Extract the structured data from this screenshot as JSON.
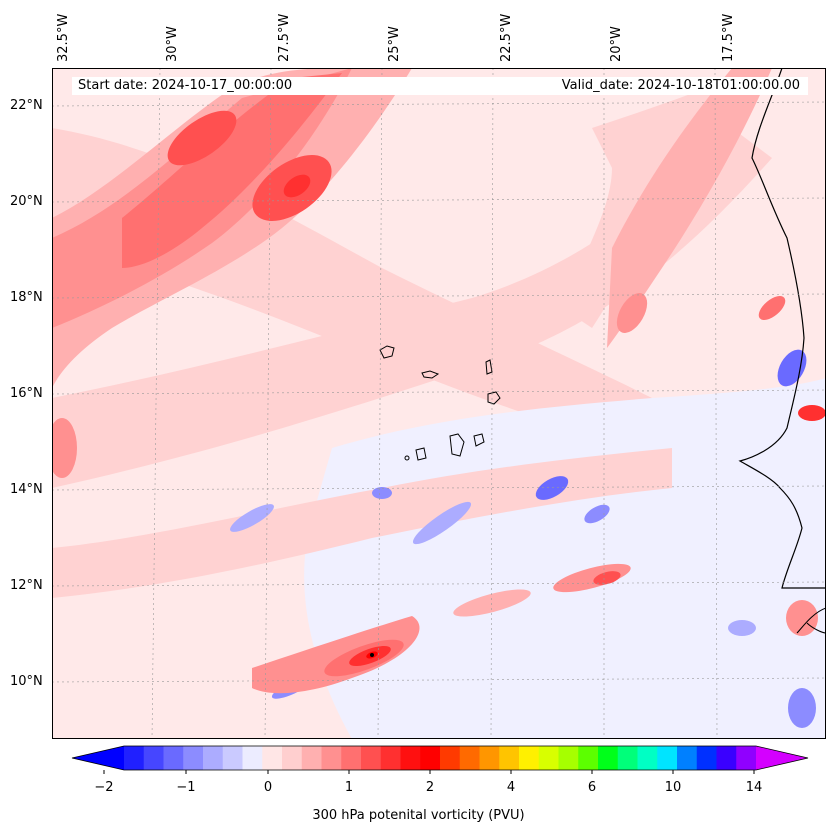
{
  "map": {
    "start_date": "Start date: 2024-10-17_00:00:00",
    "valid_date": "Valid_date: 2024-10-18T01:00:00.00",
    "longitude_labels": [
      "32.5°W",
      "30°W",
      "27.5°W",
      "25°W",
      "22.5°W",
      "20°W",
      "17.5°W"
    ],
    "latitude_labels": [
      "22°N",
      "20°N",
      "18°N",
      "16°N",
      "14°N",
      "12°N",
      "10°N"
    ],
    "field_description": "300 hPa potential vorticity field over the eastern tropical Atlantic, Cape Verde islands and West African coast"
  },
  "colorbar": {
    "label": "300 hPa potenital vorticity (PVU)",
    "tick_labels": [
      "−2",
      "−1",
      "0",
      "1",
      "2",
      "4",
      "6",
      "10",
      "14"
    ],
    "colors": [
      "#0000ff",
      "#2020ff",
      "#4646ff",
      "#6a6aff",
      "#8c8cff",
      "#acacff",
      "#cacaff",
      "#ececff",
      "#ffe6e6",
      "#ffcfcf",
      "#ffb0b0",
      "#ff9090",
      "#ff7070",
      "#ff5050",
      "#ff3030",
      "#ff1010",
      "#ff0000",
      "#ff3a00",
      "#ff6a00",
      "#ff9600",
      "#ffc400",
      "#fff000",
      "#d8ff00",
      "#a6ff00",
      "#5cff00",
      "#00ff1a",
      "#00ff7a",
      "#00ffc4",
      "#00e4ff",
      "#0080ff",
      "#0030ff",
      "#3a00ff",
      "#9000ff",
      "#d400ff"
    ]
  }
}
